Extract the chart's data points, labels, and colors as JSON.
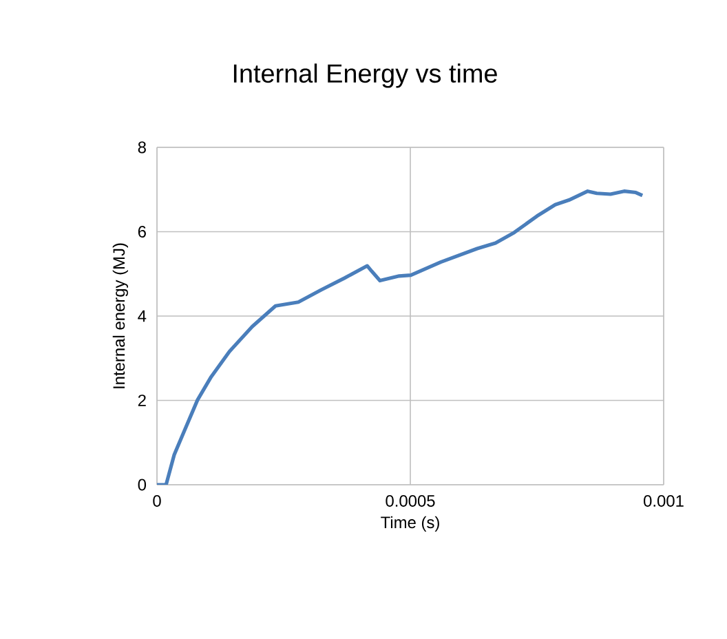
{
  "chart_data": {
    "type": "line",
    "title": "Internal Energy vs time",
    "xlabel": "Time (s)",
    "ylabel": "Internal energy (MJ)",
    "x": [
      0,
      1.8e-05,
      3.4e-05,
      5.3e-05,
      8e-05,
      0.000107,
      0.000143,
      0.000188,
      0.000234,
      0.000279,
      0.000324,
      0.00037,
      0.000415,
      0.000424,
      0.00044,
      0.000478,
      0.000501,
      0.00056,
      0.000632,
      0.000668,
      0.000705,
      0.00075,
      0.000786,
      0.000813,
      0.00085,
      0.000868,
      0.000895,
      0.000922,
      0.000945,
      0.000958
    ],
    "series": [
      {
        "color": "#4a7ebb",
        "values": [
          0,
          0,
          0.71,
          1.25,
          2.01,
          2.56,
          3.16,
          3.75,
          4.24,
          4.33,
          4.62,
          4.9,
          5.19,
          5.06,
          4.84,
          4.95,
          4.97,
          5.28,
          5.6,
          5.73,
          5.98,
          6.37,
          6.64,
          6.75,
          6.96,
          6.91,
          6.89,
          6.96,
          6.93,
          6.86
        ]
      }
    ],
    "xlim": [
      0,
      0.001
    ],
    "xticks": [
      0,
      0.0005,
      0.001
    ],
    "ylim": [
      0,
      8
    ],
    "yticks": [
      0,
      2,
      4,
      6,
      8
    ],
    "grid": true,
    "marker": "none",
    "line_style": "solid"
  }
}
